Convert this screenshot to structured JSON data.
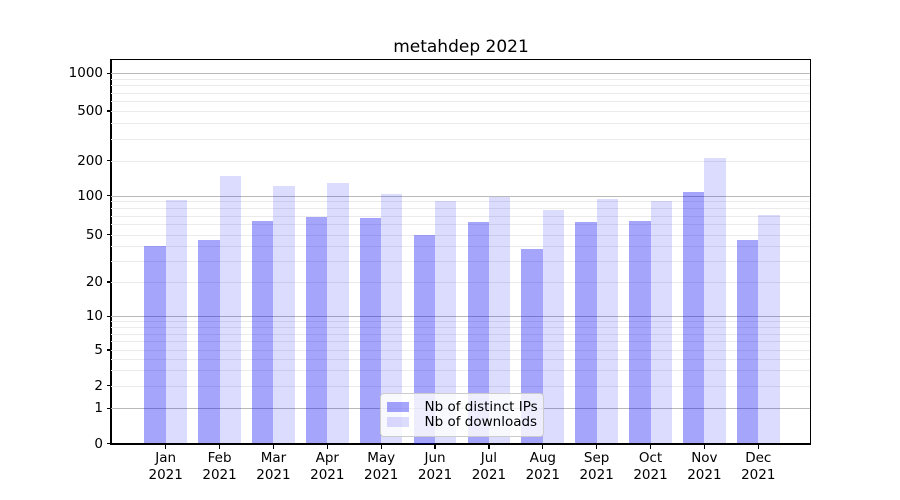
{
  "title": "metahdep 2021",
  "chart_data": {
    "type": "bar",
    "title": "metahdep 2021",
    "categories": [
      "Jan 2021",
      "Feb 2021",
      "Mar 2021",
      "Apr 2021",
      "May 2021",
      "Jun 2021",
      "Jul 2021",
      "Aug 2021",
      "Sep 2021",
      "Oct 2021",
      "Nov 2021",
      "Dec 2021"
    ],
    "series": [
      {
        "name": "Nb of distinct IPs",
        "color": "rgba(5,5,245,0.36)",
        "values": [
          40,
          45,
          64,
          68,
          67,
          50,
          62,
          38,
          62,
          64,
          107,
          45
        ]
      },
      {
        "name": "Nb of downloads",
        "color": "rgba(5,5,245,0.14)",
        "values": [
          92,
          147,
          120,
          128,
          103,
          91,
          97,
          77,
          94,
          91,
          210,
          71
        ]
      }
    ],
    "xlabel": "",
    "ylabel": "",
    "yscale": "symlog",
    "yticks": [
      0,
      1,
      2,
      5,
      10,
      20,
      50,
      100,
      200,
      500,
      1000
    ],
    "ylim": [
      0,
      1300
    ],
    "grid": "both",
    "legend_position": "lower-center-inside"
  },
  "colors": {
    "major_grid": "#b9b9b9",
    "minor_grid": "#ebebeb",
    "axis": "#000000",
    "legend_border": "#cccccc"
  }
}
